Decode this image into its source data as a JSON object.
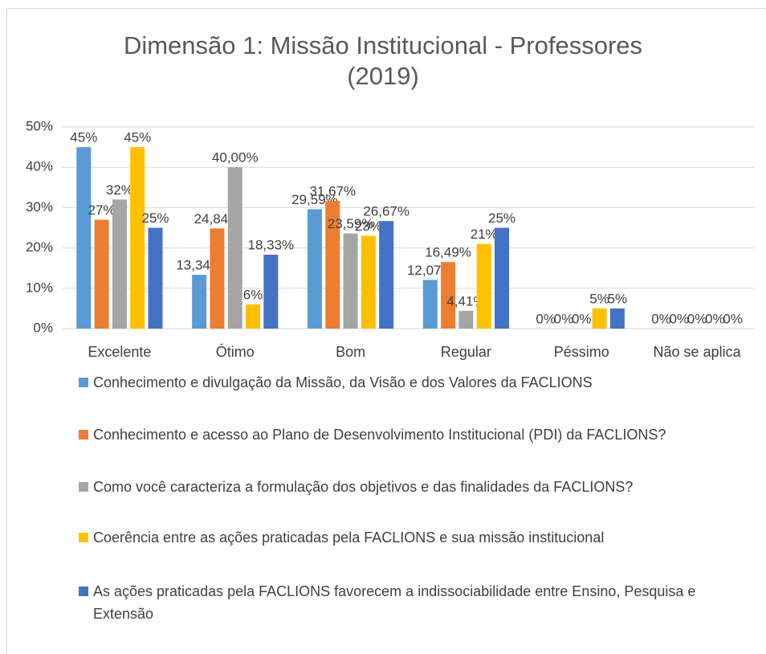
{
  "chart_data": {
    "type": "bar",
    "title": "Dimensão 1: Missão Institucional - Professores (2019)",
    "categories": [
      "Excelente",
      "Ótimo",
      "Bom",
      "Regular",
      "Péssimo",
      "Não se aplica"
    ],
    "series": [
      {
        "name": "Conhecimento e divulgação da Missão, da Visão e dos Valores da FACLIONS",
        "color": "#5b9bd5",
        "values": [
          45,
          13.34,
          29.59,
          12.07,
          0,
          0
        ],
        "value_labels": [
          "45%",
          "13,34%",
          "29,59%",
          "12,07%",
          "0%",
          "0%"
        ]
      },
      {
        "name": "Conhecimento e acesso ao Plano de Desenvolvimento Institucional (PDI) da FACLIONS?",
        "color": "#ed7d31",
        "values": [
          27,
          24.84,
          31.67,
          16.49,
          0,
          0
        ],
        "value_labels": [
          "27%",
          "24,84%",
          "31,67%",
          "16,49%",
          "0%",
          "0%"
        ]
      },
      {
        "name": "Como você caracteriza a formulação dos objetivos e das finalidades da FACLIONS?",
        "color": "#a5a5a5",
        "values": [
          32,
          40,
          23.59,
          4.41,
          0,
          0
        ],
        "value_labels": [
          "32%",
          "40,00%",
          "23,59%",
          "4,41%",
          "0%",
          "0%"
        ]
      },
      {
        "name": "Coerência entre as ações praticadas pela FACLIONS e sua missão institucional",
        "color": "#ffc000",
        "values": [
          45,
          6,
          23,
          21,
          5,
          0
        ],
        "value_labels": [
          "45%",
          "6%",
          "23%",
          "21%",
          "5%",
          "0%"
        ]
      },
      {
        "name": "As ações praticadas pela FACLIONS favorecem a indissociabilidade entre Ensino, Pesquisa e Extensão",
        "color": "#4472c4",
        "values": [
          25,
          18.33,
          26.67,
          25,
          5,
          0
        ],
        "value_labels": [
          "25%",
          "18,33%",
          "26,67%",
          "25%",
          "5%",
          "0%"
        ]
      }
    ],
    "ylim": [
      0,
      50
    ],
    "yticks": [
      {
        "value": 0,
        "label": "0%"
      },
      {
        "value": 10,
        "label": "10%"
      },
      {
        "value": 20,
        "label": "20%"
      },
      {
        "value": 30,
        "label": "30%"
      },
      {
        "value": 40,
        "label": "40%"
      },
      {
        "value": 50,
        "label": "50%"
      }
    ],
    "grid": true,
    "legend": "bottom"
  }
}
